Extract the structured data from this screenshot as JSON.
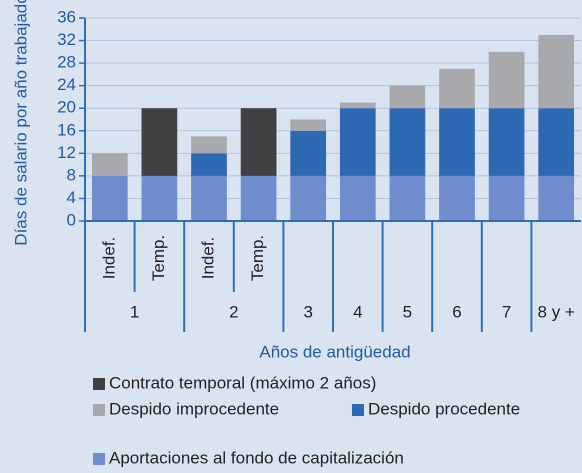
{
  "chart_data": {
    "type": "stacked_bar",
    "y_label": "Días de salario por año trabajado",
    "x_label": "Años de antigüedad",
    "categories": [
      "Indef.",
      "Temp.",
      "Indef.",
      "Temp.",
      "3",
      "4",
      "5",
      "6",
      "7",
      "8 y +"
    ],
    "groups": [
      {
        "label": "1",
        "span": 2
      },
      {
        "label": "2",
        "span": 2
      }
    ],
    "series": [
      {
        "name": "Aportaciones al fondo de capitalización",
        "color": "#6f8ccd",
        "values": [
          8,
          8,
          8,
          8,
          8,
          8,
          8,
          8,
          8,
          8
        ]
      },
      {
        "name": "Despido procedente",
        "color": "#2d68b2",
        "values": [
          0,
          0,
          4,
          0,
          8,
          12,
          12,
          12,
          12,
          12
        ]
      },
      {
        "name": "Despido improcedente",
        "color": "#a7a9ac",
        "values": [
          4,
          0,
          3,
          0,
          2,
          1,
          4,
          7,
          10,
          13
        ]
      },
      {
        "name": "Contrato temporal (máximo 2 años)",
        "color": "#414042",
        "values": [
          0,
          12,
          0,
          12,
          0,
          0,
          0,
          0,
          0,
          0
        ]
      }
    ],
    "ylim": [
      0,
      36
    ],
    "yticks": [
      0,
      4,
      8,
      12,
      16,
      20,
      24,
      28,
      32,
      36
    ],
    "grid": true
  }
}
